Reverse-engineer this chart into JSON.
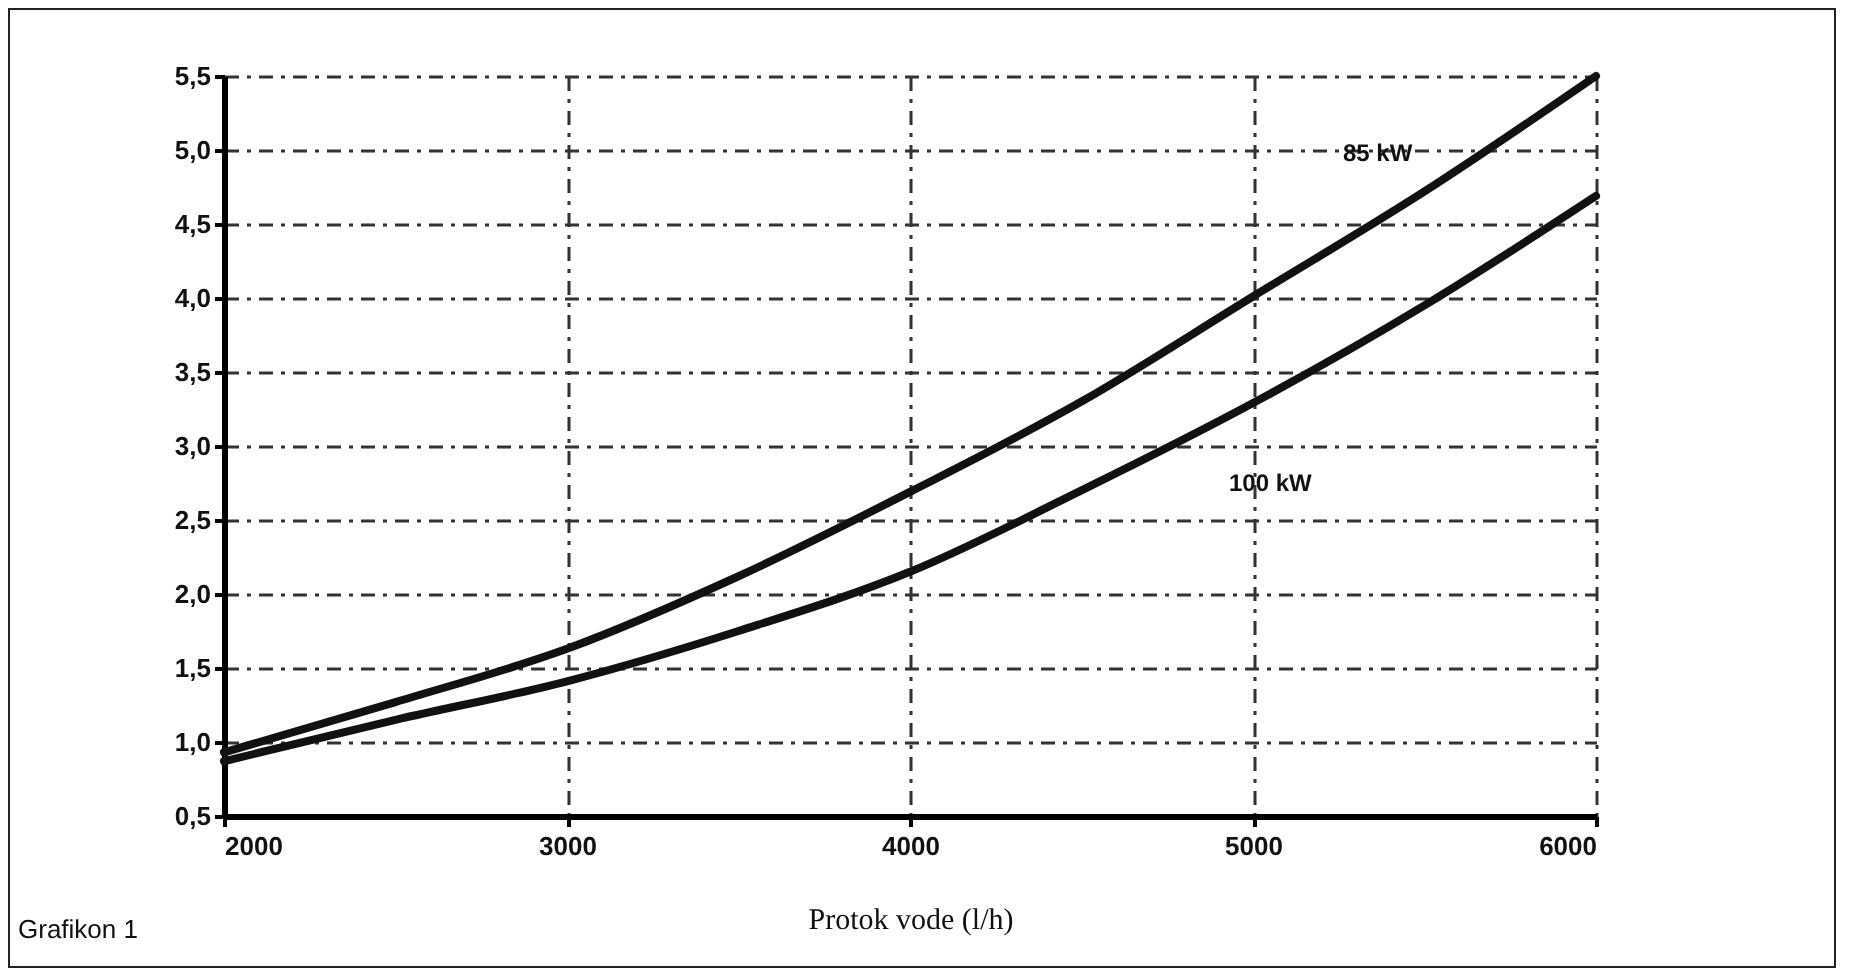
{
  "chart_data": {
    "type": "line",
    "xlabel": "Protok vode (l/h)",
    "x": [
      2000,
      2500,
      3000,
      3500,
      4000,
      4500,
      5000,
      5500,
      6000
    ],
    "series": [
      {
        "name": "85 kW",
        "color": "#111111",
        "values": [
          0.93,
          1.27,
          1.63,
          2.12,
          2.69,
          3.3,
          4.01,
          4.72,
          5.5
        ]
      },
      {
        "name": "100 kW",
        "color": "#111111",
        "values": [
          0.87,
          1.15,
          1.41,
          1.75,
          2.15,
          2.7,
          3.29,
          3.95,
          4.69
        ]
      }
    ],
    "xlim": [
      2000,
      6000
    ],
    "xticks": [
      2000,
      3000,
      4000,
      5000,
      6000
    ],
    "ylim": [
      0.5,
      5.5
    ],
    "yticks": [
      {
        "value": 0.5,
        "label": "0,5"
      },
      {
        "value": 1,
        "label": "1,0"
      },
      {
        "value": 1.5,
        "label": "1,5"
      },
      {
        "value": 2,
        "label": "2,0"
      },
      {
        "value": 2.5,
        "label": "2,5"
      },
      {
        "value": 3,
        "label": "3,0"
      },
      {
        "value": 3.5,
        "label": "3,5"
      },
      {
        "value": 4,
        "label": "4,0"
      },
      {
        "value": 4.5,
        "label": "4,5"
      },
      {
        "value": 5,
        "label": "5,0"
      },
      {
        "value": 5.5,
        "label": "5,5"
      }
    ],
    "grid": true,
    "line_style": "solid",
    "marker": "none",
    "annotations": [
      "Grafikon 1"
    ]
  }
}
